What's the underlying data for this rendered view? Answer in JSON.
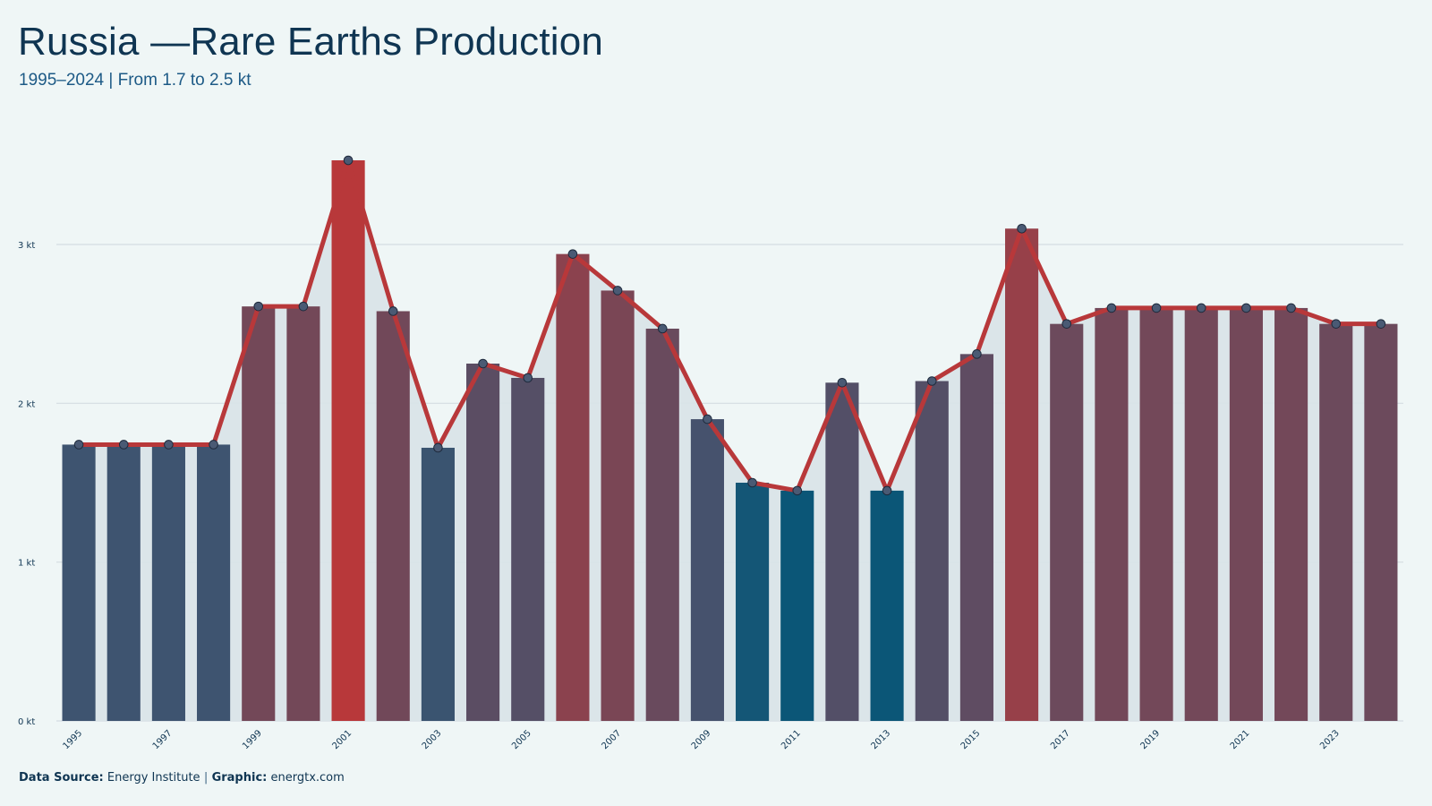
{
  "header": {
    "title": "Russia —Rare Earths Production",
    "subtitle": "1995–2024 | From 1.7 to 2.5 kt"
  },
  "footer": {
    "source_label": "Data Source:",
    "source_value": "Energy Institute",
    "separator": "|",
    "graphic_label": "Graphic:",
    "graphic_value": "energtx.com"
  },
  "colors": {
    "line": "#b8383a",
    "area": "#d9e4e8",
    "grid": "#d4dde2",
    "low": "#0b5677",
    "mid": "#3e5470",
    "high": "#b8383a",
    "marker": "#4a5a74"
  },
  "chart_data": {
    "type": "bar",
    "overlay": "line",
    "x": [
      1995,
      1996,
      1997,
      1998,
      1999,
      2000,
      2001,
      2002,
      2003,
      2004,
      2005,
      2006,
      2007,
      2008,
      2009,
      2010,
      2011,
      2012,
      2013,
      2014,
      2015,
      2016,
      2017,
      2018,
      2019,
      2020,
      2021,
      2022,
      2023,
      2024
    ],
    "values": [
      1.74,
      1.74,
      1.74,
      1.74,
      2.61,
      2.61,
      3.53,
      2.58,
      1.72,
      2.25,
      2.16,
      2.94,
      2.71,
      2.47,
      1.9,
      1.5,
      1.45,
      2.13,
      1.45,
      2.14,
      2.31,
      3.1,
      2.5,
      2.6,
      2.6,
      2.6,
      2.6,
      2.6,
      2.5,
      2.5
    ],
    "x_tick_labels": [
      "1995",
      "1997",
      "1999",
      "2001",
      "2003",
      "2005",
      "2007",
      "2009",
      "2011",
      "2013",
      "2015",
      "2017",
      "2019",
      "2021",
      "2023"
    ],
    "y_ticks": [
      0,
      1,
      2,
      3
    ],
    "y_tick_labels": [
      "0 kt",
      "1 kt",
      "2 kt",
      "3 kt"
    ],
    "ylim": [
      0,
      3.75
    ],
    "unit": "kt",
    "grid": true,
    "legend": false
  }
}
